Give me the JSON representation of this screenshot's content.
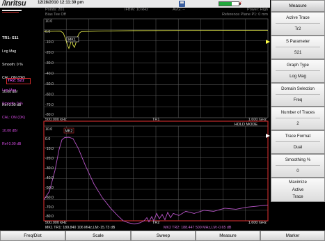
{
  "header": {
    "logo": "/Inritsu",
    "datetime": "12/28/2010 12:11:39 pm",
    "battery_level": 0.65
  },
  "sidebar": {
    "trace1": {
      "title": "TR1: S11",
      "lines": [
        "Log Mag",
        "Smooth: 0 %",
        "CAL: ON (OK)",
        "10.00 dB/",
        "Ref 0.00 dB"
      ]
    },
    "trace2": {
      "title": "TR2: S21",
      "lines": [
        "Log Mag",
        "Smooth: 0 %",
        "CAL: ON (OK)",
        "10.00 dB/",
        "Ref 0.00 dB"
      ]
    }
  },
  "plot": {
    "points": "Points: 201",
    "bias_tee": "Bias Tee Off",
    "ifbw": "IFBW: 10 kHz",
    "avg": "AVG: --",
    "power": "Power: High",
    "ref_plane": "Reference Plane P1: 0 mm",
    "tr1_label": "TR1",
    "tr2_label": "TR2",
    "hold_mode": "HOLD MODE",
    "start_freq": "500.000 kHz",
    "stop_freq": "1.600 GHz",
    "start_freq_2": "500.000 kHz",
    "stop_freq_2": "1.600 GHz",
    "marker_status_1": "MK1 TR1: 189.840 106 MHz,LM:-15.73 dB",
    "marker_status_2": "MK2 TR2: 188.447 500 MHz,LM:-0.65 dB",
    "mk1_label": "MK1",
    "mk2_label": "MK2",
    "top_y_labels": [
      "10.0",
      "0.0",
      "-10.0",
      "-20.0",
      "-30.0",
      "-40.0",
      "-50.0",
      "-60.0",
      "-70.0",
      "-80.0"
    ],
    "bottom_y_labels": [
      "10.0",
      "0.0",
      "-10.0",
      "-20.0",
      "-30.0",
      "-40.0",
      "-50.0",
      "-60.0",
      "-70.0",
      "-80.0"
    ],
    "colors": {
      "trace1": "#e2e84a",
      "trace2": "#b855c9",
      "active_border": "#c22a2a",
      "grid": "#5f5f5f",
      "ref_arrow": "#ffff44"
    }
  },
  "softkeys": {
    "title": "Measure",
    "buttons": [
      {
        "label": "Active Trace",
        "value": "Tr2"
      },
      {
        "label": "S Parameter",
        "value": "S21"
      },
      {
        "label": "Graph Type",
        "value": "Log Mag"
      },
      {
        "label": "Domain Selection",
        "value": "Freq"
      },
      {
        "label": "Number of Traces",
        "value": "2"
      },
      {
        "label": "Trace Format",
        "value": "Dual"
      },
      {
        "label": "Smoothing %",
        "value": "0"
      },
      {
        "label": "Maximize",
        "value": "Active",
        "value2": "Trace"
      }
    ]
  },
  "bottom_menu": [
    "Freq/Dist",
    "Scale",
    "Sweep",
    "Measure",
    "Marker"
  ]
}
